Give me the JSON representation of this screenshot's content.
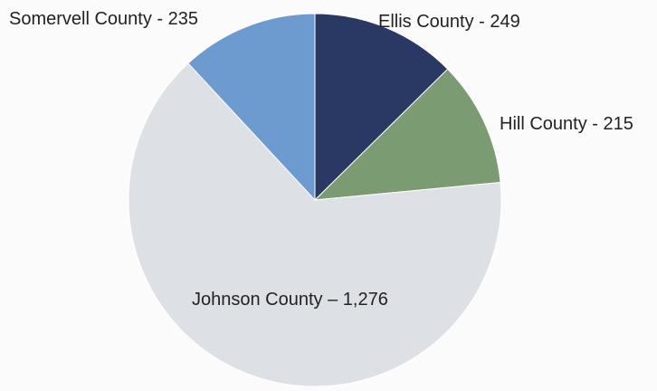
{
  "chart_data": {
    "type": "pie",
    "title": "",
    "start_angle_deg": 0,
    "direction": "clockwise",
    "slices": [
      {
        "name": "Ellis County",
        "value": 249,
        "label": "Ellis County - 249",
        "color": "#2a3864"
      },
      {
        "name": "Hill County",
        "value": 215,
        "label": "Hill County - 215",
        "color": "#7b9b72"
      },
      {
        "name": "Johnson County",
        "value": 1276,
        "label": "Johnson County – 1,276",
        "color": "#dde0e4"
      },
      {
        "name": "Somervell County",
        "value": 235,
        "label": "Somervell County - 235",
        "color": "#6d9bd0"
      }
    ],
    "legend": "none"
  }
}
